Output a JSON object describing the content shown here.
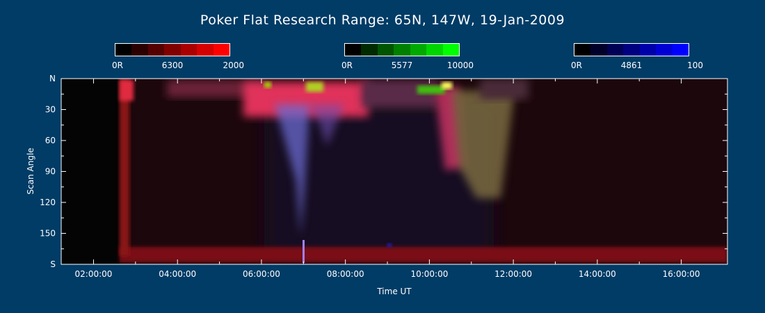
{
  "chart_data": {
    "type": "heatmap",
    "title": "Poker Flat Research Range: 65N, 147W, 19-Jan-2009",
    "xlabel": "Time UT",
    "ylabel": "Scan Angle",
    "x_ticks": [
      "02:00:00",
      "04:00:00",
      "06:00:00",
      "08:00:00",
      "10:00:00",
      "12:00:00",
      "14:00:00",
      "16:00:00"
    ],
    "y_ticks": [
      "N",
      "30",
      "60",
      "90",
      "120",
      "150",
      "S"
    ],
    "colorbars": [
      {
        "name": "6300",
        "min_label": "0R",
        "mid_label": "6300",
        "max_label": "2000",
        "color": "#ff0000"
      },
      {
        "name": "5577",
        "min_label": "0R",
        "mid_label": "5577",
        "max_label": "10000",
        "color": "#00ff00"
      },
      {
        "name": "4861",
        "min_label": "0R",
        "mid_label": "4861",
        "max_label": "100",
        "color": "#0000ff"
      }
    ]
  }
}
